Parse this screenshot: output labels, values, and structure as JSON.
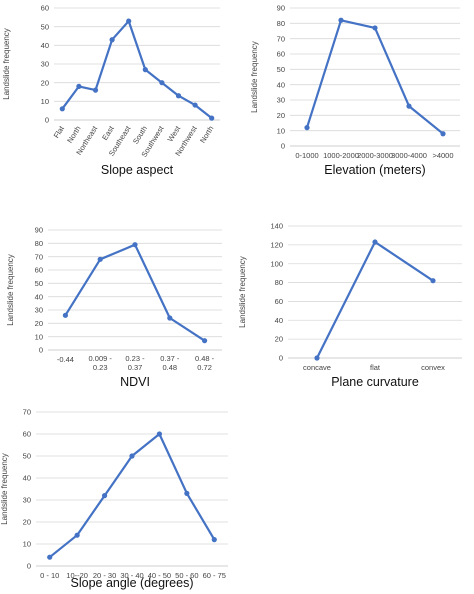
{
  "colors": {
    "series": "#4472C4"
  },
  "chart_data": [
    {
      "type": "line",
      "categories": [
        "Flat",
        "North",
        "Northeast",
        "East",
        "Southeast",
        "South",
        "Southwest",
        "West",
        "Northwest",
        "North"
      ],
      "values": [
        6,
        18,
        16,
        43,
        53,
        27,
        20,
        13,
        8,
        1
      ],
      "xlabel": "Slope aspect",
      "ylabel": "Landslide frequency",
      "ylim": [
        0,
        60
      ],
      "yticks": [
        0,
        10,
        20,
        30,
        40,
        50,
        60
      ],
      "grid": true,
      "legend": "none"
    },
    {
      "type": "line",
      "categories": [
        "0-1000",
        "1000-2000",
        "2000-3000",
        "3000-4000",
        ">4000"
      ],
      "values": [
        12,
        82,
        77,
        26,
        8
      ],
      "xlabel": "Elevation (meters)",
      "ylabel": "Landslide frequency",
      "ylim": [
        0,
        90
      ],
      "yticks": [
        0,
        10,
        20,
        30,
        40,
        50,
        60,
        70,
        80,
        90
      ],
      "grid": true,
      "legend": "none"
    },
    {
      "type": "line",
      "categories": [
        "-0.44",
        "0.009 - 0.23",
        "0.23 - 0.37",
        "0.37 - 0.48",
        "0.48 - 0.72"
      ],
      "values": [
        26,
        68,
        79,
        24,
        7
      ],
      "xlabel": "NDVI",
      "ylabel": "Landslide frequency",
      "ylim": [
        0,
        90
      ],
      "yticks": [
        0,
        10,
        20,
        30,
        40,
        50,
        60,
        70,
        80,
        90
      ],
      "grid": true,
      "legend": "none"
    },
    {
      "type": "line",
      "categories": [
        "concave",
        "flat",
        "convex"
      ],
      "values": [
        0,
        123,
        82
      ],
      "xlabel": "Plane curvature",
      "ylabel": "Landslide frequency",
      "ylim": [
        0,
        140
      ],
      "yticks": [
        0,
        20,
        40,
        60,
        80,
        100,
        120,
        140
      ],
      "grid": true,
      "legend": "none"
    },
    {
      "type": "line",
      "categories": [
        "0 - 10",
        "10--20",
        "20 - 30",
        "30 - 40",
        "40 - 50",
        "50 - 60",
        "60 - 75"
      ],
      "values": [
        4,
        14,
        32,
        50,
        60,
        33,
        12
      ],
      "xlabel": "Slope angle (degrees)",
      "ylabel": "Landslide frequency",
      "ylim": [
        0,
        70
      ],
      "yticks": [
        0,
        10,
        20,
        30,
        40,
        50,
        60,
        70
      ],
      "grid": true,
      "legend": "none"
    }
  ]
}
